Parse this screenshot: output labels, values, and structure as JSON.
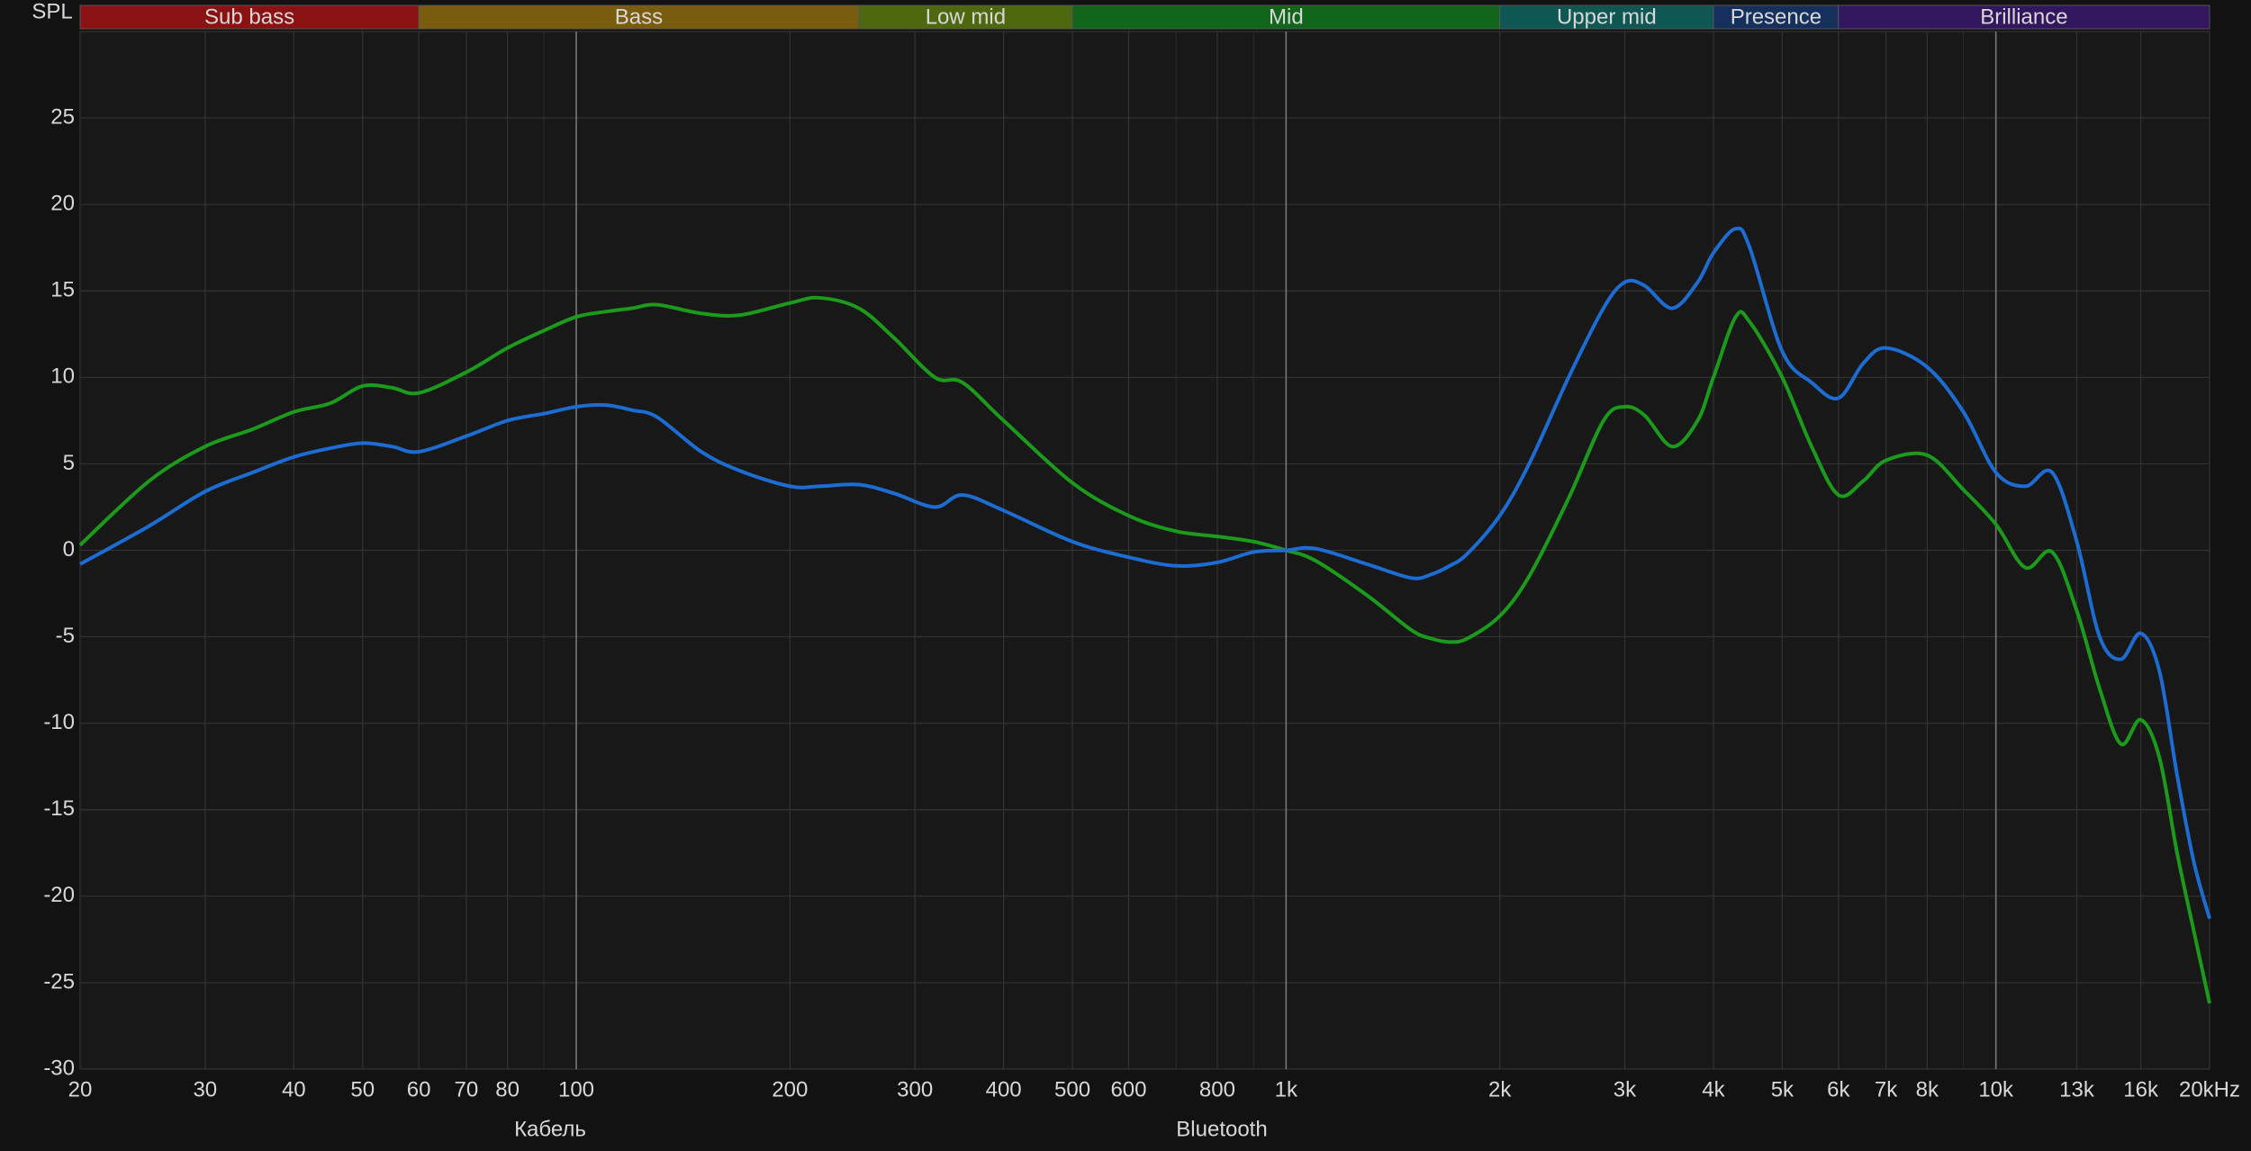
{
  "chart_data": {
    "type": "line",
    "y_label": "SPL",
    "log_x": true,
    "grid": true,
    "xlim": [
      20,
      20000
    ],
    "ylim": [
      -30,
      30
    ],
    "yticks": [
      -30,
      -25,
      -20,
      -15,
      -10,
      -5,
      0,
      5,
      10,
      15,
      20,
      25
    ],
    "xticks": [
      20,
      30,
      40,
      50,
      60,
      70,
      80,
      100,
      200,
      300,
      400,
      500,
      600,
      800,
      {
        "value": 1000,
        "label": "1k"
      },
      {
        "value": 2000,
        "label": "2k"
      },
      {
        "value": 3000,
        "label": "3k"
      },
      {
        "value": 4000,
        "label": "4k"
      },
      {
        "value": 5000,
        "label": "5k"
      },
      {
        "value": 6000,
        "label": "6k"
      },
      {
        "value": 7000,
        "label": "7k"
      },
      {
        "value": 8000,
        "label": "8k"
      },
      {
        "value": 10000,
        "label": "10k"
      },
      {
        "value": 13000,
        "label": "13k"
      },
      {
        "value": 16000,
        "label": "16k"
      },
      {
        "value": 20000,
        "label": "20kHz"
      }
    ],
    "x_minor_grid": [
      90,
      700,
      900,
      9000
    ],
    "bands": [
      {
        "name": "Sub bass",
        "from": 20,
        "to": 60,
        "color": "#8a1212"
      },
      {
        "name": "Bass",
        "from": 60,
        "to": 250,
        "color": "#7a5c0e"
      },
      {
        "name": "Low mid",
        "from": 250,
        "to": 500,
        "color": "#4d680e"
      },
      {
        "name": "Mid",
        "from": 500,
        "to": 2000,
        "color": "#11661c"
      },
      {
        "name": "Upper mid",
        "from": 2000,
        "to": 4000,
        "color": "#0f5753"
      },
      {
        "name": "Presence",
        "from": 4000,
        "to": 6000,
        "color": "#15305c"
      },
      {
        "name": "Brilliance",
        "from": 6000,
        "to": 20000,
        "color": "#32175e"
      }
    ],
    "x": [
      20,
      25,
      30,
      35,
      40,
      45,
      50,
      55,
      60,
      70,
      80,
      90,
      100,
      110,
      120,
      130,
      150,
      170,
      200,
      220,
      250,
      280,
      320,
      350,
      400,
      500,
      600,
      700,
      800,
      900,
      1000,
      1100,
      1300,
      1500,
      1600,
      1700,
      1800,
      2000,
      2200,
      2500,
      2800,
      3000,
      3200,
      3500,
      3800,
      4000,
      4300,
      4500,
      5000,
      5500,
      6000,
      6500,
      7000,
      8000,
      9000,
      10000,
      11000,
      12000,
      13000,
      14000,
      15000,
      16000,
      17000,
      18000,
      19000,
      20000
    ],
    "series": [
      {
        "name": "Кабель",
        "color": "#1c9a1c",
        "values": [
          0.3,
          4.0,
          6.0,
          7.0,
          8.0,
          8.5,
          9.5,
          9.4,
          9.1,
          10.3,
          11.7,
          12.7,
          13.5,
          13.8,
          14.0,
          14.2,
          13.7,
          13.6,
          14.3,
          14.6,
          14.0,
          12.3,
          10.0,
          9.7,
          7.5,
          3.9,
          2.0,
          1.1,
          0.8,
          0.5,
          0.0,
          -0.6,
          -2.6,
          -4.6,
          -5.1,
          -5.3,
          -5.1,
          -3.8,
          -1.5,
          3.0,
          7.5,
          8.3,
          7.8,
          6.0,
          7.5,
          10.0,
          13.5,
          13.2,
          10.0,
          6.0,
          3.2,
          4.0,
          5.2,
          5.5,
          3.5,
          1.5,
          -1.0,
          -0.1,
          -3.5,
          -8.0,
          -11.2,
          -9.8,
          -12.0,
          -17.5,
          -22.0,
          -26.2
        ]
      },
      {
        "name": "Bluetooth",
        "color": "#1c6cd2",
        "values": [
          -0.8,
          1.4,
          3.4,
          4.5,
          5.4,
          5.9,
          6.2,
          6.0,
          5.7,
          6.6,
          7.5,
          7.9,
          8.3,
          8.4,
          8.1,
          7.7,
          5.7,
          4.6,
          3.7,
          3.7,
          3.8,
          3.3,
          2.5,
          3.2,
          2.3,
          0.5,
          -0.4,
          -0.9,
          -0.7,
          -0.1,
          0.0,
          0.1,
          -0.8,
          -1.6,
          -1.4,
          -0.9,
          -0.2,
          2.0,
          5.0,
          10.0,
          14.0,
          15.5,
          15.3,
          14.0,
          15.5,
          17.2,
          18.6,
          17.5,
          11.5,
          9.7,
          8.8,
          10.8,
          11.7,
          10.6,
          8.0,
          4.5,
          3.7,
          4.5,
          0.5,
          -5.0,
          -6.3,
          -4.8,
          -7.0,
          -13.0,
          -18.0,
          -21.3
        ]
      }
    ]
  }
}
